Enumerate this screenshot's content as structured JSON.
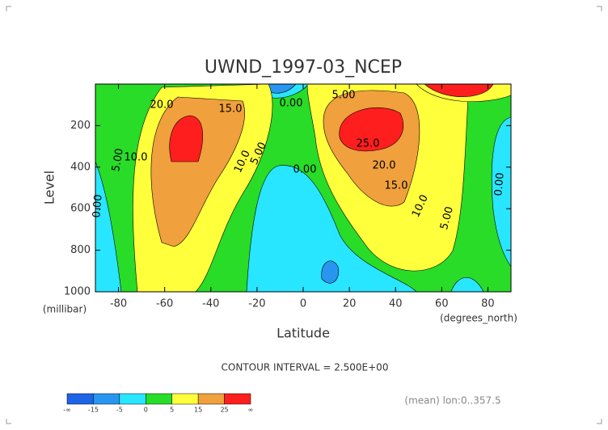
{
  "chart_data": {
    "type": "contour",
    "title": "UWND_1997-03_NCEP",
    "xlabel": "Latitude",
    "xunit": "(degrees_north)",
    "ylabel": "Level",
    "yunit": "(millibar)",
    "xlim": [
      -90,
      90
    ],
    "xticks": [
      -80,
      -60,
      -40,
      -20,
      0,
      20,
      40,
      60,
      80
    ],
    "ylim": [
      1000,
      0
    ],
    "yticks": [
      200,
      400,
      600,
      800,
      1000
    ],
    "contour_labels": [
      "20.0",
      "15.0",
      "10.0",
      "5.00",
      "0.00",
      "10.0",
      "5.00",
      "0.00",
      "5.00",
      "0.00",
      "25.0",
      "20.0",
      "15.0",
      "10.0",
      "5.00",
      "0.00"
    ],
    "contour_interval": "CONTOUR INTERVAL = 2.500E+00",
    "annotation": "(mean) lon:0..357.5",
    "colorbar": {
      "labels": [
        "-∞",
        "-15",
        "-5",
        "0",
        "5",
        "15",
        "25",
        "∞"
      ],
      "colors": [
        "#1e64e6",
        "#2896f0",
        "#28e6ff",
        "#28dc28",
        "#ffff3c",
        "#f0a03c",
        "#ff1e1e"
      ]
    }
  }
}
